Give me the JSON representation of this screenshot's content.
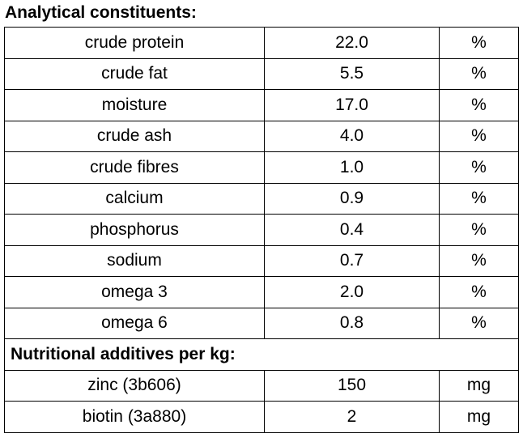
{
  "header": {
    "title": "Analytical constituents:"
  },
  "table": {
    "rows": [
      [
        "crude protein",
        "22.0",
        "%"
      ],
      [
        "crude fat",
        "5.5",
        "%"
      ],
      [
        "moisture",
        "17.0",
        "%"
      ],
      [
        "crude ash",
        "4.0",
        "%"
      ],
      [
        "crude fibres",
        "1.0",
        "%"
      ],
      [
        "calcium",
        "0.9",
        "%"
      ],
      [
        "phosphorus",
        "0.4",
        "%"
      ],
      [
        "sodium",
        "0.7",
        "%"
      ],
      [
        "omega 3",
        "2.0",
        "%"
      ],
      [
        "omega 6",
        "0.8",
        "%"
      ]
    ]
  },
  "section": {
    "title": "Nutritional additives per kg:"
  },
  "additives": {
    "rows": [
      [
        "zinc (3b606)",
        "150",
        "mg"
      ],
      [
        "biotin (3a880)",
        "2",
        "mg"
      ]
    ]
  }
}
